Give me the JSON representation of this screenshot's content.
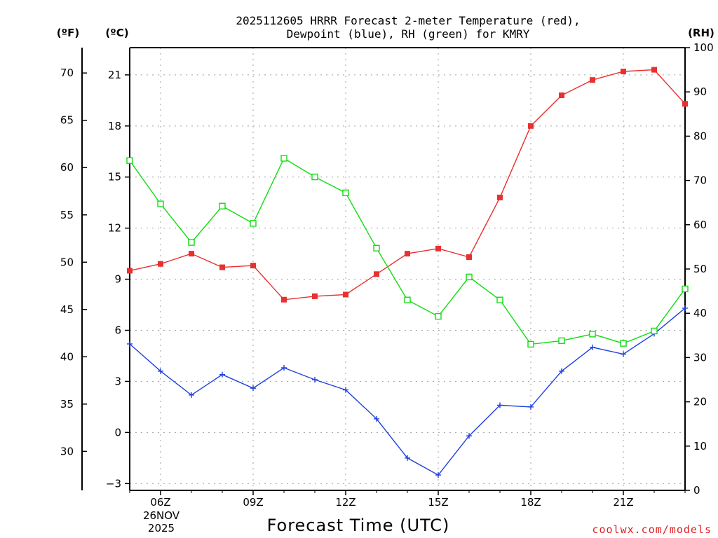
{
  "chart_data": {
    "type": "line",
    "title_line1": "2025112605 HRRR Forecast 2-meter Temperature (red),",
    "title_line2": "Dewpoint (blue), RH (green) for KMRY",
    "xlabel": "Forecast Time (UTC)",
    "credit": "coolwx.com/models",
    "units": {
      "left_f": "(ºF)",
      "left_c": "(ºC)",
      "right_rh": "(RH)"
    },
    "x_range_hours": [
      5,
      23
    ],
    "x_ticks": [
      {
        "hour": 6,
        "label": "06Z"
      },
      {
        "hour": 9,
        "label": "09Z"
      },
      {
        "hour": 12,
        "label": "12Z"
      },
      {
        "hour": 15,
        "label": "15Z"
      },
      {
        "hour": 18,
        "label": "18Z"
      },
      {
        "hour": 21,
        "label": "21Z"
      }
    ],
    "date_label_line1": "26NOV",
    "date_label_line2": "2025",
    "y_range_c": [
      -3.4,
      22.6
    ],
    "y_ticks_c": [
      "-3",
      "0",
      "3",
      "6",
      "9",
      "12",
      "15",
      "18",
      "21"
    ],
    "y_ticks_f": [
      "30",
      "35",
      "40",
      "45",
      "50",
      "55",
      "60",
      "65",
      "70"
    ],
    "y_range_rh": [
      0,
      100
    ],
    "y_ticks_rh": [
      "0",
      "10",
      "20",
      "30",
      "40",
      "50",
      "60",
      "70",
      "80",
      "90",
      "100"
    ],
    "grid": true,
    "hours": [
      5,
      6,
      7,
      8,
      9,
      10,
      11,
      12,
      13,
      14,
      15,
      16,
      17,
      18,
      19,
      20,
      21,
      22,
      23
    ],
    "series": [
      {
        "name": "Temperature",
        "axis": "celsius",
        "color": "#e83030",
        "marker": "filled-square",
        "values": [
          9.5,
          9.9,
          10.5,
          9.7,
          9.8,
          7.8,
          8.0,
          8.1,
          9.3,
          10.5,
          10.8,
          10.3,
          13.8,
          18.0,
          19.8,
          20.7,
          21.2,
          21.3,
          19.3
        ]
      },
      {
        "name": "Dewpoint",
        "axis": "celsius",
        "color": "#2040e0",
        "marker": "plus",
        "values": [
          5.2,
          3.6,
          2.2,
          3.4,
          2.6,
          3.8,
          3.1,
          2.5,
          0.8,
          -1.5,
          -2.5,
          -0.2,
          1.6,
          1.5,
          3.6,
          5.0,
          4.6,
          5.8,
          7.3
        ]
      },
      {
        "name": "Relative Humidity",
        "axis": "rh",
        "color": "#10dd10",
        "marker": "open-square",
        "values": [
          74.5,
          64.7,
          56.0,
          64.2,
          60.3,
          75.0,
          70.8,
          67.2,
          54.7,
          43.0,
          39.3,
          48.2,
          43.0,
          33.0,
          33.8,
          35.3,
          33.2,
          36.0,
          45.5
        ]
      }
    ]
  }
}
